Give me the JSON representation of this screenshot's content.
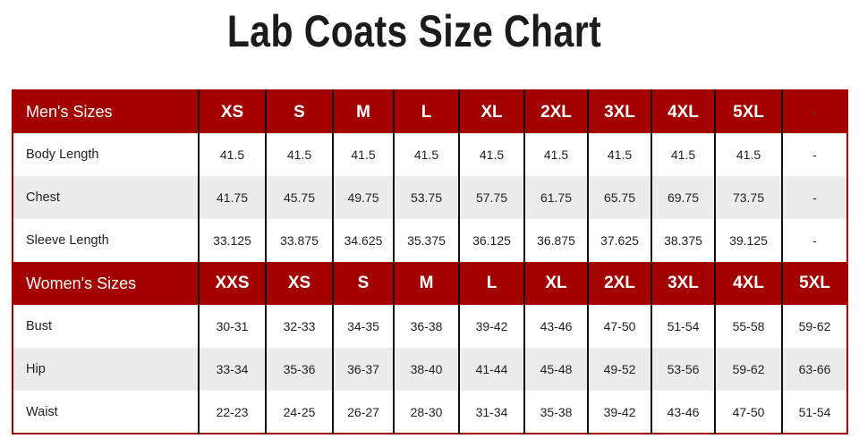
{
  "title": "Lab Coats Size Chart",
  "men": {
    "header": [
      "Men's Sizes",
      "XS",
      "S",
      "M",
      "L",
      "XL",
      "2XL",
      "3XL",
      "4XL",
      "5XL",
      "-"
    ],
    "rows": [
      {
        "label": "Body Length",
        "values": [
          "41.5",
          "41.5",
          "41.5",
          "41.5",
          "41.5",
          "41.5",
          "41.5",
          "41.5",
          "41.5",
          "-"
        ]
      },
      {
        "label": "Chest",
        "values": [
          "41.75",
          "45.75",
          "49.75",
          "53.75",
          "57.75",
          "61.75",
          "65.75",
          "69.75",
          "73.75",
          "-"
        ]
      },
      {
        "label": "Sleeve Length",
        "values": [
          "33.125",
          "33.875",
          "34.625",
          "35.375",
          "36.125",
          "36.875",
          "37.625",
          "38.375",
          "39.125",
          "-"
        ]
      }
    ]
  },
  "women": {
    "header": [
      "Women's  Sizes",
      "XXS",
      "XS",
      "S",
      "M",
      "L",
      "XL",
      "2XL",
      "3XL",
      "4XL",
      "5XL"
    ],
    "rows": [
      {
        "label": "Bust",
        "values": [
          "30-31",
          "32-33",
          "34-35",
          "36-38",
          "39-42",
          "43-46",
          "47-50",
          "51-54",
          "55-58",
          "59-62"
        ]
      },
      {
        "label": "Hip",
        "values": [
          "33-34",
          "35-36",
          "36-37",
          "38-40",
          "41-44",
          "45-48",
          "49-52",
          "53-56",
          "59-62",
          "63-66"
        ]
      },
      {
        "label": "Waist",
        "values": [
          "22-23",
          "24-25",
          "26-27",
          "28-30",
          "31-34",
          "35-38",
          "39-42",
          "43-46",
          "47-50",
          "51-54"
        ]
      }
    ]
  },
  "colors": {
    "header_bg": "#a30000",
    "alt_row": "#ececec"
  }
}
